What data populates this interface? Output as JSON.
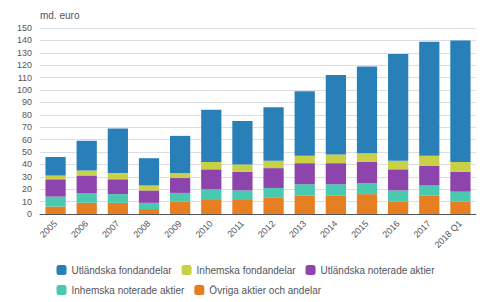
{
  "chart_data": {
    "type": "bar",
    "stacked": true,
    "ylabel": "md. euro",
    "categories": [
      "2005",
      "2006",
      "2007",
      "2008",
      "2009",
      "2010",
      "2011",
      "2012",
      "2013",
      "2014",
      "2015",
      "2016",
      "2017",
      "2018 Q1"
    ],
    "series": [
      {
        "name": "Övriga aktier och andelar",
        "color": "#E67E22",
        "values": [
          6,
          9,
          9,
          4,
          10,
          12,
          12,
          13,
          15,
          15,
          16,
          10,
          15,
          10
        ]
      },
      {
        "name": "Inhemska noterade aktier",
        "color": "#48C9B0",
        "values": [
          8,
          8,
          7,
          5,
          7,
          8,
          7,
          8,
          9,
          9,
          9,
          9,
          8,
          8
        ]
      },
      {
        "name": "Utländska noterade aktier",
        "color": "#8E44AD",
        "values": [
          14,
          14,
          12,
          10,
          12,
          16,
          15,
          16,
          17,
          17,
          17,
          17,
          16,
          16
        ]
      },
      {
        "name": "Inhemska fondandelar",
        "color": "#C8D045",
        "values": [
          3,
          4,
          5,
          4,
          4,
          6,
          6,
          6,
          6,
          7,
          7,
          7,
          8,
          8
        ]
      },
      {
        "name": "Utländska fondandelar",
        "color": "#2980B9",
        "values": [
          15,
          24,
          36,
          22,
          30,
          42,
          35,
          43,
          52,
          64,
          70,
          86,
          92,
          98
        ]
      }
    ],
    "ylim": [
      0,
      150
    ],
    "yticks": [
      0,
      10,
      20,
      30,
      40,
      50,
      60,
      70,
      80,
      90,
      100,
      110,
      120,
      130,
      140,
      150
    ],
    "grid": true,
    "legend": "bottom"
  }
}
